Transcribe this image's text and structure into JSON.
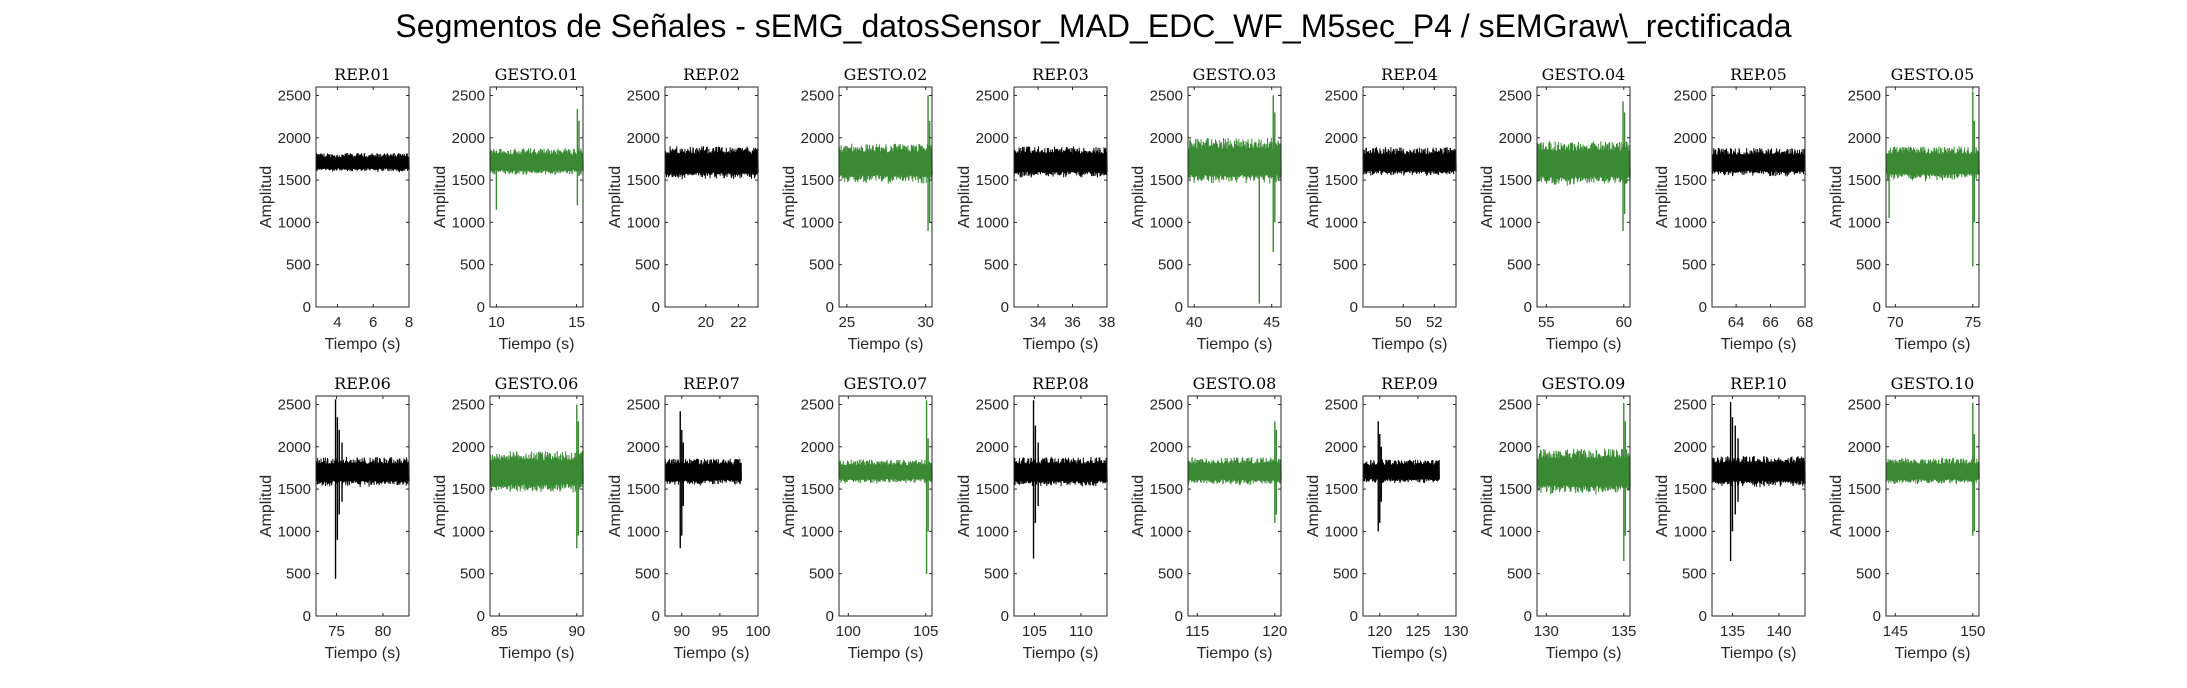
{
  "figure": {
    "suptitle": "Segmentos de Señales - sEMG_datosSensor_MAD_EDC_WF_M5sec_P4 / sEMGraw\\_rectificada"
  },
  "colors": {
    "rep": "#000000",
    "gesto": "#3a8a34",
    "axis": "#262626"
  },
  "chart_data": [
    {
      "type": "line",
      "title": "REP_01",
      "xlabel": "Tiempo (s)",
      "ylabel": "Amplitud",
      "xlim": [
        2.8,
        8
      ],
      "ylim": [
        0,
        2600
      ],
      "xticks": [
        4,
        6,
        8
      ],
      "yticks": [
        0,
        500,
        1000,
        1500,
        2000,
        2500
      ],
      "color": "#000000",
      "series": [
        {
          "x": [
            2.8,
            8
          ],
          "y_center": 1700,
          "y_min": 1590,
          "y_max": 1820,
          "spikes": []
        }
      ]
    },
    {
      "type": "line",
      "title": "GESTO_01",
      "xlabel": "Tiempo (s)",
      "ylabel": "Amplitud",
      "xlim": [
        9.6,
        15.4
      ],
      "ylim": [
        0,
        2600
      ],
      "xticks": [
        10,
        15
      ],
      "yticks": [
        0,
        500,
        1000,
        1500,
        2000,
        2500
      ],
      "color": "#3a8a34",
      "series": [
        {
          "x": [
            9.6,
            15.4
          ],
          "y_center": 1700,
          "y_min": 1550,
          "y_max": 1880,
          "spikes": [
            [
              10.0,
              1150,
              1850
            ],
            [
              15.05,
              2340,
              1200
            ],
            [
              15.15,
              1550,
              2200
            ]
          ]
        }
      ]
    },
    {
      "type": "line",
      "title": "REP_02",
      "xlabel": "",
      "ylabel": "Amplitud",
      "xlim": [
        17.5,
        23.2
      ],
      "ylim": [
        0,
        2600
      ],
      "xticks": [
        20,
        22
      ],
      "yticks": [
        0,
        500,
        1000,
        1500,
        2000,
        2500
      ],
      "color": "#000000",
      "series": [
        {
          "x": [
            17.5,
            23.2
          ],
          "y_center": 1700,
          "y_min": 1500,
          "y_max": 1900,
          "spikes": []
        }
      ]
    },
    {
      "type": "line",
      "title": "GESTO_02",
      "xlabel": "Tiempo (s)",
      "ylabel": "Amplitud",
      "xlim": [
        24.5,
        30.4
      ],
      "ylim": [
        0,
        2600
      ],
      "xticks": [
        25,
        30
      ],
      "yticks": [
        0,
        500,
        1000,
        1500,
        2000,
        2500
      ],
      "color": "#3a8a34",
      "series": [
        {
          "x": [
            24.5,
            30.4
          ],
          "y_center": 1700,
          "y_min": 1450,
          "y_max": 1930,
          "spikes": [
            [
              30.15,
              2500,
              900
            ],
            [
              30.25,
              1000,
              2200
            ]
          ]
        }
      ]
    },
    {
      "type": "line",
      "title": "REP_03",
      "xlabel": "Tiempo (s)",
      "ylabel": "Amplitud",
      "xlim": [
        32.6,
        38
      ],
      "ylim": [
        0,
        2600
      ],
      "xticks": [
        34,
        36,
        38
      ],
      "yticks": [
        0,
        500,
        1000,
        1500,
        2000,
        2500
      ],
      "color": "#000000",
      "series": [
        {
          "x": [
            32.6,
            38
          ],
          "y_center": 1700,
          "y_min": 1520,
          "y_max": 1900,
          "spikes": []
        }
      ]
    },
    {
      "type": "line",
      "title": "GESTO_03",
      "xlabel": "Tiempo (s)",
      "ylabel": "Amplitud",
      "xlim": [
        39.6,
        45.6
      ],
      "ylim": [
        0,
        2600
      ],
      "xticks": [
        40,
        45
      ],
      "yticks": [
        0,
        500,
        1000,
        1500,
        2000,
        2500
      ],
      "color": "#3a8a34",
      "series": [
        {
          "x": [
            39.6,
            45.6
          ],
          "y_center": 1700,
          "y_min": 1450,
          "y_max": 2000,
          "spikes": [
            [
              44.2,
              40,
              1700
            ],
            [
              45.1,
              2500,
              650
            ],
            [
              45.2,
              1000,
              2300
            ]
          ]
        }
      ]
    },
    {
      "type": "line",
      "title": "REP_04",
      "xlabel": "Tiempo (s)",
      "ylabel": "Amplitud",
      "xlim": [
        47.4,
        53.4
      ],
      "ylim": [
        0,
        2600
      ],
      "xticks": [
        50,
        52
      ],
      "yticks": [
        0,
        500,
        1000,
        1500,
        2000,
        2500
      ],
      "color": "#000000",
      "series": [
        {
          "x": [
            47.4,
            53.4
          ],
          "y_center": 1700,
          "y_min": 1540,
          "y_max": 1890,
          "spikes": []
        }
      ]
    },
    {
      "type": "line",
      "title": "GESTO_04",
      "xlabel": "Tiempo (s)",
      "ylabel": "Amplitud",
      "xlim": [
        54.4,
        60.4
      ],
      "ylim": [
        0,
        2600
      ],
      "xticks": [
        55,
        60
      ],
      "yticks": [
        0,
        500,
        1000,
        1500,
        2000,
        2500
      ],
      "color": "#3a8a34",
      "series": [
        {
          "x": [
            54.4,
            60.4
          ],
          "y_center": 1700,
          "y_min": 1420,
          "y_max": 1960,
          "spikes": [
            [
              59.95,
              2430,
              900
            ],
            [
              60.05,
              1100,
              2300
            ]
          ]
        }
      ]
    },
    {
      "type": "line",
      "title": "REP_05",
      "xlabel": "Tiempo (s)",
      "ylabel": "Amplitud",
      "xlim": [
        62.6,
        68
      ],
      "ylim": [
        0,
        2600
      ],
      "xticks": [
        64,
        66,
        68
      ],
      "yticks": [
        0,
        500,
        1000,
        1500,
        2000,
        2500
      ],
      "color": "#000000",
      "series": [
        {
          "x": [
            62.6,
            68
          ],
          "y_center": 1700,
          "y_min": 1540,
          "y_max": 1880,
          "spikes": []
        }
      ]
    },
    {
      "type": "line",
      "title": "GESTO_05",
      "xlabel": "Tiempo (s)",
      "ylabel": "Amplitud",
      "xlim": [
        69.4,
        75.4
      ],
      "ylim": [
        0,
        2600
      ],
      "xticks": [
        70,
        75
      ],
      "yticks": [
        0,
        500,
        1000,
        1500,
        2000,
        2500
      ],
      "color": "#3a8a34",
      "series": [
        {
          "x": [
            69.4,
            75.4
          ],
          "y_center": 1700,
          "y_min": 1480,
          "y_max": 1900,
          "spikes": [
            [
              69.6,
              1050,
              1850
            ],
            [
              75.0,
              2550,
              480
            ],
            [
              75.1,
              1000,
              2200
            ]
          ]
        }
      ]
    },
    {
      "type": "line",
      "title": "REP_06",
      "xlabel": "Tiempo (s)",
      "ylabel": "Amplitud",
      "xlim": [
        72.8,
        82.8
      ],
      "ylim": [
        0,
        2600
      ],
      "xticks": [
        75,
        80
      ],
      "yticks": [
        0,
        500,
        1000,
        1500,
        2000,
        2500
      ],
      "color": "#000000",
      "series": [
        {
          "x": [
            72.8,
            82.8
          ],
          "y_center": 1700,
          "y_min": 1520,
          "y_max": 1880,
          "spikes": [
            [
              74.9,
              2560,
              440
            ],
            [
              75.1,
              900,
              2350
            ],
            [
              75.3,
              1200,
              2200
            ],
            [
              75.6,
              1350,
              2050
            ]
          ]
        }
      ]
    },
    {
      "type": "line",
      "title": "GESTO_06",
      "xlabel": "Tiempo (s)",
      "ylabel": "Amplitud",
      "xlim": [
        84.4,
        90.4
      ],
      "ylim": [
        0,
        2600
      ],
      "xticks": [
        85,
        90
      ],
      "yticks": [
        0,
        500,
        1000,
        1500,
        2000,
        2500
      ],
      "color": "#3a8a34",
      "series": [
        {
          "x": [
            84.4,
            90.4
          ],
          "y_center": 1700,
          "y_min": 1450,
          "y_max": 1950,
          "spikes": [
            [
              90.0,
              2500,
              800
            ],
            [
              90.1,
              950,
              2300
            ]
          ]
        }
      ]
    },
    {
      "type": "line",
      "title": "REP_07",
      "xlabel": "Tiempo (s)",
      "ylabel": "Amplitud",
      "xlim": [
        87.8,
        100
      ],
      "ylim": [
        0,
        2600
      ],
      "xticks": [
        90,
        95,
        100
      ],
      "yticks": [
        0,
        500,
        1000,
        1500,
        2000,
        2500
      ],
      "color": "#000000",
      "series": [
        {
          "x": [
            87.8,
            97.8
          ],
          "y_center": 1700,
          "y_min": 1540,
          "y_max": 1860,
          "spikes": [
            [
              89.8,
              2420,
              800
            ],
            [
              90.0,
              950,
              2200
            ],
            [
              90.2,
              1300,
              2050
            ]
          ]
        }
      ]
    },
    {
      "type": "line",
      "title": "GESTO_07",
      "xlabel": "Tiempo (s)",
      "ylabel": "Amplitud",
      "xlim": [
        99.4,
        105.4
      ],
      "ylim": [
        0,
        2600
      ],
      "xticks": [
        100,
        105
      ],
      "yticks": [
        0,
        500,
        1000,
        1500,
        2000,
        2500
      ],
      "color": "#3a8a34",
      "series": [
        {
          "x": [
            99.4,
            105.4
          ],
          "y_center": 1700,
          "y_min": 1560,
          "y_max": 1850,
          "spikes": [
            [
              105.05,
              2550,
              500
            ],
            [
              105.15,
              1000,
              2100
            ]
          ]
        }
      ]
    },
    {
      "type": "line",
      "title": "REP_08",
      "xlabel": "Tiempo (s)",
      "ylabel": "Amplitud",
      "xlim": [
        102.8,
        112.8
      ],
      "ylim": [
        0,
        2600
      ],
      "xticks": [
        105,
        110
      ],
      "yticks": [
        0,
        500,
        1000,
        1500,
        2000,
        2500
      ],
      "color": "#000000",
      "series": [
        {
          "x": [
            102.8,
            112.8
          ],
          "y_center": 1700,
          "y_min": 1520,
          "y_max": 1880,
          "spikes": [
            [
              104.9,
              2550,
              680
            ],
            [
              105.1,
              1100,
              2250
            ],
            [
              105.4,
              1300,
              2050
            ]
          ]
        }
      ]
    },
    {
      "type": "line",
      "title": "GESTO_08",
      "xlabel": "Tiempo (s)",
      "ylabel": "Amplitud",
      "xlim": [
        114.4,
        120.4
      ],
      "ylim": [
        0,
        2600
      ],
      "xticks": [
        115,
        120
      ],
      "yticks": [
        0,
        500,
        1000,
        1500,
        2000,
        2500
      ],
      "color": "#3a8a34",
      "series": [
        {
          "x": [
            114.4,
            120.4
          ],
          "y_center": 1700,
          "y_min": 1540,
          "y_max": 1880,
          "spikes": [
            [
              120.0,
              2300,
              1100
            ],
            [
              120.1,
              1200,
              2200
            ]
          ]
        }
      ]
    },
    {
      "type": "line",
      "title": "REP_09",
      "xlabel": "Tiempo (s)",
      "ylabel": "Amplitud",
      "xlim": [
        117.8,
        130
      ],
      "ylim": [
        0,
        2600
      ],
      "xticks": [
        120,
        125,
        130
      ],
      "yticks": [
        0,
        500,
        1000,
        1500,
        2000,
        2500
      ],
      "color": "#000000",
      "series": [
        {
          "x": [
            117.8,
            127.8
          ],
          "y_center": 1700,
          "y_min": 1560,
          "y_max": 1850,
          "spikes": [
            [
              119.8,
              2300,
              1000
            ],
            [
              120.0,
              1100,
              2150
            ],
            [
              120.2,
              1350,
              2000
            ]
          ]
        }
      ]
    },
    {
      "type": "line",
      "title": "GESTO_09",
      "xlabel": "Tiempo (s)",
      "ylabel": "Amplitud",
      "xlim": [
        129.4,
        135.4
      ],
      "ylim": [
        0,
        2600
      ],
      "xticks": [
        130,
        135
      ],
      "yticks": [
        0,
        500,
        1000,
        1500,
        2000,
        2500
      ],
      "color": "#3a8a34",
      "series": [
        {
          "x": [
            129.4,
            135.4
          ],
          "y_center": 1700,
          "y_min": 1420,
          "y_max": 1980,
          "spikes": [
            [
              135.0,
              2520,
              650
            ],
            [
              135.1,
              950,
              2300
            ]
          ]
        }
      ]
    },
    {
      "type": "line",
      "title": "REP_10",
      "xlabel": "Tiempo (s)",
      "ylabel": "Amplitud",
      "xlim": [
        132.8,
        142.8
      ],
      "ylim": [
        0,
        2600
      ],
      "xticks": [
        135,
        140
      ],
      "yticks": [
        0,
        500,
        1000,
        1500,
        2000,
        2500
      ],
      "color": "#000000",
      "series": [
        {
          "x": [
            132.8,
            142.8
          ],
          "y_center": 1700,
          "y_min": 1520,
          "y_max": 1890,
          "spikes": [
            [
              134.8,
              2530,
              650
            ],
            [
              135.0,
              1000,
              2350
            ],
            [
              135.3,
              1200,
              2250
            ],
            [
              135.6,
              1350,
              2100
            ]
          ]
        }
      ]
    },
    {
      "type": "line",
      "title": "GESTO_10",
      "xlabel": "Tiempo (s)",
      "ylabel": "Amplitud",
      "xlim": [
        144.4,
        150.4
      ],
      "ylim": [
        0,
        2600
      ],
      "xticks": [
        145,
        150
      ],
      "yticks": [
        0,
        500,
        1000,
        1500,
        2000,
        2500
      ],
      "color": "#3a8a34",
      "series": [
        {
          "x": [
            144.4,
            150.4
          ],
          "y_center": 1700,
          "y_min": 1550,
          "y_max": 1870,
          "spikes": [
            [
              150.0,
              2520,
              950
            ],
            [
              150.1,
              1000,
              2150
            ]
          ]
        }
      ]
    }
  ]
}
